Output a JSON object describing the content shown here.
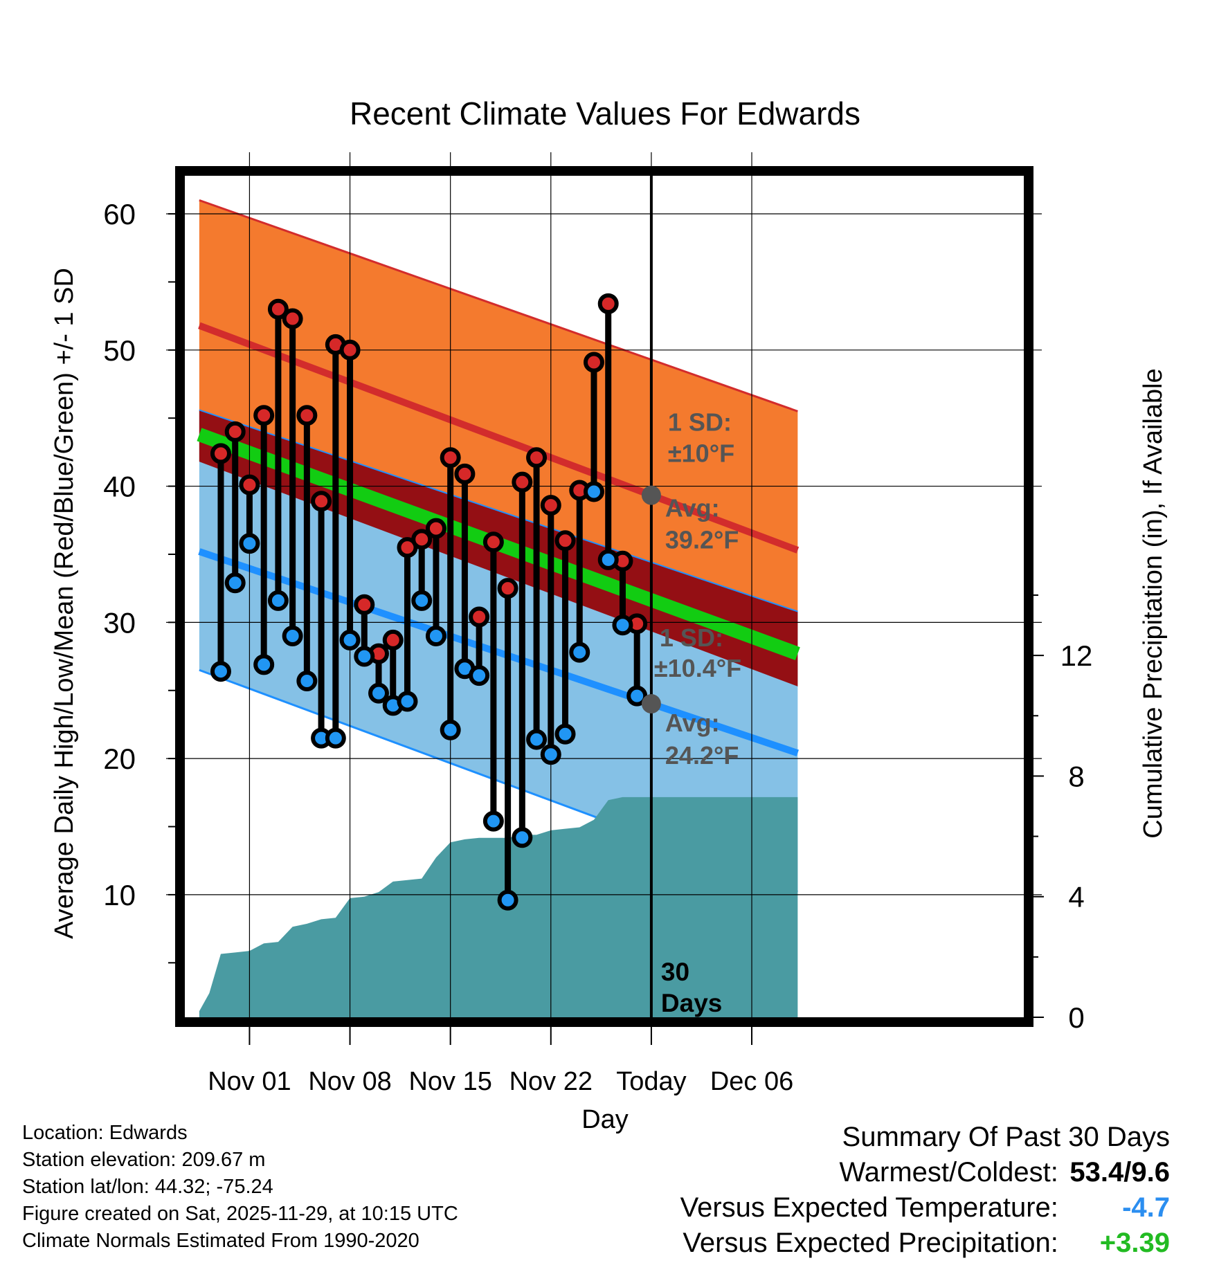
{
  "chart_data": {
    "type": "line",
    "title": "Recent Climate Values For Edwards",
    "xlabel": "Day",
    "ylabel": "Average Daily High/Low/Mean (Red/Blue/Green) +/- 1 SD",
    "y2label": "Cumulative Precipitation (in), If Available",
    "ylim": [
      1,
      63
    ],
    "y2lim": [
      0,
      28
    ],
    "xlim": [
      -3.7,
      55.1
    ],
    "x_tick_labels": [
      {
        "day": 1,
        "label": "Nov 01"
      },
      {
        "day": 8,
        "label": "Nov 08"
      },
      {
        "day": 15,
        "label": "Nov 15"
      },
      {
        "day": 22,
        "label": "Nov 22"
      },
      {
        "day": 29,
        "label": "Today"
      },
      {
        "day": 36,
        "label": "Dec 06"
      }
    ],
    "y_tick_labels": [
      "10",
      "20",
      "30",
      "40",
      "50",
      "60"
    ],
    "y2_tick_labels": [
      "0",
      "4",
      "8",
      "12"
    ],
    "today_day": 29,
    "today_label": "30 Days",
    "normals": {
      "day": [
        -2.5,
        39.2
      ],
      "avg_high": [
        51.8,
        35.3
      ],
      "high_upper": [
        61.0,
        45.5
      ],
      "avg_mean": [
        43.8,
        27.7
      ],
      "avg_low": [
        35.2,
        20.4
      ],
      "low_lower": [
        26.5,
        10.2
      ],
      "high_sd_label": "1 SD:",
      "high_sd_value": "±10°F",
      "high_avg_label": "Avg:",
      "high_avg_value": "39.2°F",
      "low_sd_label": "1 SD:",
      "low_sd_value": "±10.4°F",
      "low_avg_label": "Avg:",
      "low_avg_value": "24.2°F"
    },
    "series": [
      {
        "name": "Daily High",
        "color": "#d62828",
        "x": [
          -1,
          0,
          1,
          2,
          3,
          4,
          5,
          6,
          7,
          8,
          9,
          10,
          11,
          12,
          13,
          14,
          15,
          16,
          17,
          18,
          19,
          20,
          21,
          22,
          23,
          24,
          25,
          26,
          27,
          28
        ],
        "values": [
          42.4,
          44.0,
          40.1,
          45.2,
          53.0,
          52.3,
          45.2,
          38.9,
          50.4,
          50.0,
          31.3,
          27.7,
          28.7,
          35.5,
          36.1,
          36.9,
          42.1,
          40.9,
          30.4,
          35.9,
          32.5,
          40.3,
          42.1,
          38.6,
          36.0,
          39.7,
          49.1,
          53.4,
          34.5,
          29.9
        ]
      },
      {
        "name": "Daily Low",
        "color": "#2196f3",
        "x": [
          -1,
          0,
          1,
          2,
          3,
          4,
          5,
          6,
          7,
          8,
          9,
          10,
          11,
          12,
          13,
          14,
          15,
          16,
          17,
          18,
          19,
          20,
          21,
          22,
          23,
          24,
          25,
          26,
          27,
          28
        ],
        "values": [
          26.4,
          32.9,
          35.8,
          26.9,
          31.6,
          29.0,
          25.7,
          21.5,
          21.5,
          28.7,
          27.5,
          24.8,
          23.9,
          24.2,
          31.6,
          29.0,
          22.1,
          26.6,
          26.1,
          15.4,
          9.6,
          14.2,
          21.4,
          20.3,
          21.8,
          27.8,
          39.6,
          34.6,
          29.8,
          24.6
        ]
      },
      {
        "name": "Cumulative Precipitation",
        "color": "#4a9ba2",
        "x": [
          -2.5,
          -1.8,
          -1,
          0,
          1,
          2,
          3,
          4,
          5,
          6,
          7,
          8,
          9,
          10,
          11,
          12,
          13,
          14,
          15,
          16,
          17,
          18,
          19,
          20,
          21,
          22,
          23,
          24,
          25,
          26,
          27,
          28,
          29,
          39.2
        ],
        "values": [
          0.2,
          0.8,
          2.1,
          2.15,
          2.2,
          2.45,
          2.5,
          3.0,
          3.1,
          3.25,
          3.3,
          3.95,
          4.0,
          4.15,
          4.5,
          4.55,
          4.6,
          5.3,
          5.8,
          5.9,
          5.95,
          5.95,
          5.95,
          6.05,
          6.05,
          6.2,
          6.25,
          6.3,
          6.55,
          7.2,
          7.3,
          7.3,
          7.3,
          7.3
        ]
      }
    ]
  },
  "info": {
    "location": "Location: Edwards",
    "elevation": "Station elevation: 209.67 m",
    "latlon": "Station lat/lon: 44.32; -75.24",
    "created": "Figure created on Sat, 2025-11-29, at 10:15 UTC",
    "normals": "Climate Normals Estimated From 1990-2020"
  },
  "summary": {
    "title": "Summary Of Past 30 Days",
    "warm_cold_label": "Warmest/Coldest:",
    "warm_cold_value": "53.4/9.6",
    "temp_label": "Versus Expected Temperature:",
    "temp_value": "-4.7",
    "precip_label": "Versus Expected Precipitation:",
    "precip_value": "+3.39"
  },
  "colors": {
    "high_band": "#f47a2e",
    "high_line": "#d22c2c",
    "low_band": "#85c1e6",
    "low_line": "#1e90ff",
    "overlap": "#940f14",
    "mean_line": "#12cc12",
    "precip": "#4a9ba2",
    "temp_value": "#2b8ef0",
    "precip_value": "#22bb22",
    "annot_gray": "#555555"
  }
}
